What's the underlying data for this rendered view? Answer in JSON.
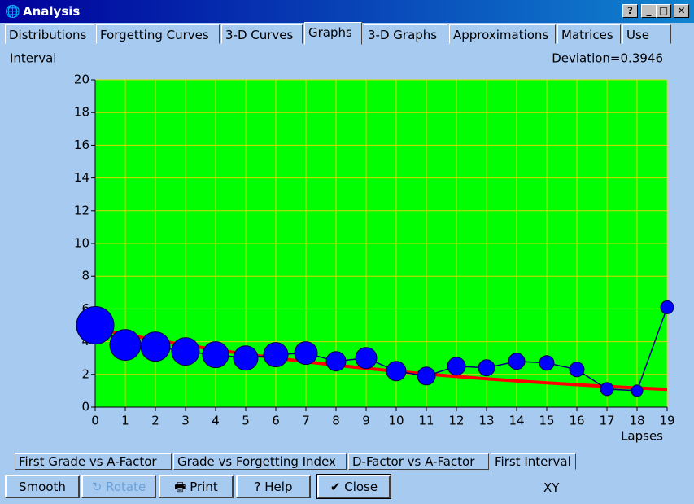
{
  "window": {
    "title": "Analysis",
    "help_button": "?",
    "tabs": [
      "Distributions",
      "Forgetting Curves",
      "3-D Curves",
      "Graphs",
      "3-D Graphs",
      "Approximations",
      "Matrices",
      "Use"
    ],
    "sub_tabs": [
      "First Grade vs A-Factor",
      "Grade vs Forgetting Index",
      "D-Factor vs A-Factor",
      "First Interval"
    ],
    "buttons": [
      "Smooth",
      "Rotate",
      "Print",
      "Help",
      "Close"
    ],
    "mode": "XY"
  },
  "chart_data": {
    "type": "bubble",
    "y_label": "Interval",
    "x_label": "Lapses",
    "annotation": "Deviation=0.3946",
    "x": [
      0,
      1,
      2,
      3,
      4,
      5,
      6,
      7,
      8,
      9,
      10,
      11,
      12,
      13,
      14,
      15,
      16,
      17,
      18,
      19
    ],
    "series": [
      {
        "color": "#0000ff",
        "values": [
          5.0,
          3.8,
          3.7,
          3.4,
          3.2,
          3.0,
          3.2,
          3.3,
          2.8,
          3.0,
          2.2,
          1.9,
          2.5,
          2.4,
          2.8,
          2.7,
          2.3,
          1.1,
          1.0,
          6.1
        ],
        "sizes": [
          23,
          19,
          18,
          17,
          16,
          15,
          15,
          14,
          12,
          13,
          12,
          11,
          11,
          10,
          10,
          9,
          9,
          8,
          7,
          8
        ]
      },
      {
        "color": "#ff0000",
        "values": [
          4.8,
          4.44,
          4.1,
          3.79,
          3.51,
          3.24,
          3.0,
          2.77,
          2.56,
          2.37,
          2.19,
          2.02,
          1.87,
          1.73,
          1.6,
          1.48,
          1.37,
          1.26,
          1.17,
          1.08
        ]
      }
    ],
    "xlim": [
      0,
      19
    ],
    "ylim": [
      0,
      20
    ],
    "xticks": [
      0,
      1,
      2,
      3,
      4,
      5,
      6,
      7,
      8,
      9,
      10,
      11,
      12,
      13,
      14,
      15,
      16,
      17,
      18,
      19
    ],
    "yticks": [
      0,
      2,
      4,
      6,
      8,
      10,
      12,
      14,
      16,
      18,
      20
    ],
    "grid": true,
    "plot_color": "#00ff00",
    "grid_color": "#d8d800"
  }
}
